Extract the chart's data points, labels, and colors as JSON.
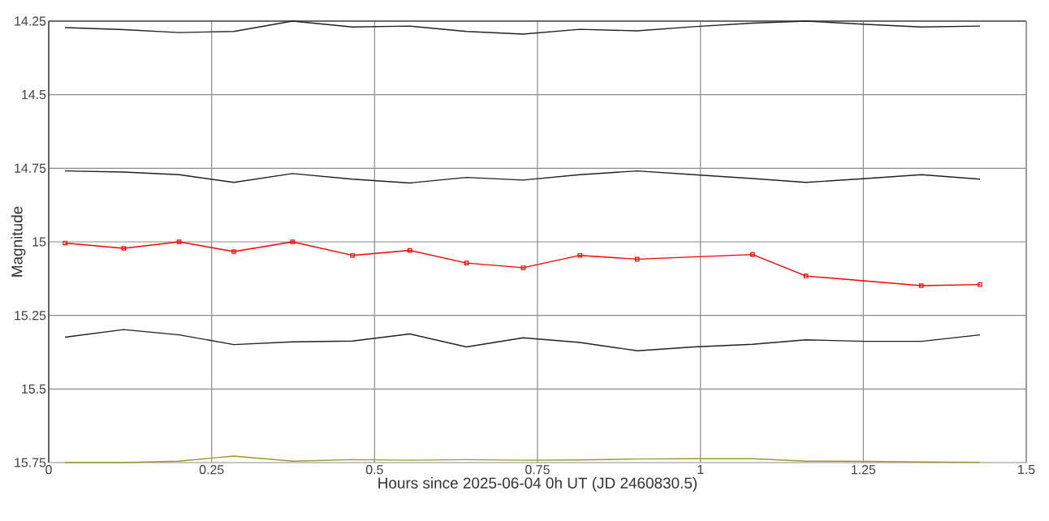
{
  "chart_data": {
    "type": "line",
    "xlabel": "Hours since 2025-06-04 0h UT (JD 2460830.5)",
    "ylabel": "Magnitude",
    "x": [
      0.025,
      0.115,
      0.2,
      0.284,
      0.374,
      0.466,
      0.554,
      0.641,
      0.728,
      0.815,
      0.903,
      0.99,
      1.08,
      1.162,
      1.254,
      1.339,
      1.429
    ],
    "series": [
      {
        "color": "#222222",
        "marker": "none",
        "values": [
          14.272,
          14.279,
          14.289,
          14.285,
          14.25,
          14.27,
          14.267,
          14.285,
          14.294,
          14.278,
          14.283,
          14.269,
          14.257,
          14.25,
          14.261,
          14.27,
          14.267
        ]
      },
      {
        "color": "#222222",
        "marker": "none",
        "values": [
          14.759,
          14.763,
          14.772,
          14.798,
          14.768,
          14.787,
          14.8,
          14.781,
          14.79,
          14.772,
          14.759,
          14.772,
          14.785,
          14.798,
          14.785,
          14.772,
          14.787
        ]
      },
      {
        "color": "#ff0000",
        "marker": "square",
        "values": [
          15.004,
          15.022,
          15.0,
          15.033,
          15.0,
          15.046,
          15.029,
          15.072,
          15.088,
          15.046,
          15.059,
          null,
          15.043,
          15.116,
          null,
          15.149,
          15.145
        ]
      },
      {
        "color": "#222222",
        "marker": "none",
        "values": [
          15.324,
          15.298,
          15.316,
          15.349,
          15.34,
          15.337,
          15.313,
          15.357,
          15.326,
          15.342,
          15.37,
          15.357,
          15.348,
          15.333,
          15.338,
          15.338,
          15.316
        ]
      },
      {
        "color": "#9a9a30",
        "marker": "none",
        "values": [
          15.75,
          15.75,
          15.745,
          15.728,
          15.745,
          15.74,
          15.742,
          15.74,
          15.742,
          15.741,
          15.738,
          15.737,
          15.737,
          15.745,
          15.746,
          15.748,
          15.749
        ]
      }
    ],
    "xlim": [
      0,
      1.5
    ],
    "ylim": [
      15.75,
      14.25
    ],
    "xticks": [
      0,
      0.25,
      0.5,
      0.75,
      1,
      1.25,
      1.5
    ],
    "yticks": [
      14.25,
      14.5,
      14.75,
      15,
      15.25,
      15.5,
      15.75
    ],
    "grid": true
  }
}
